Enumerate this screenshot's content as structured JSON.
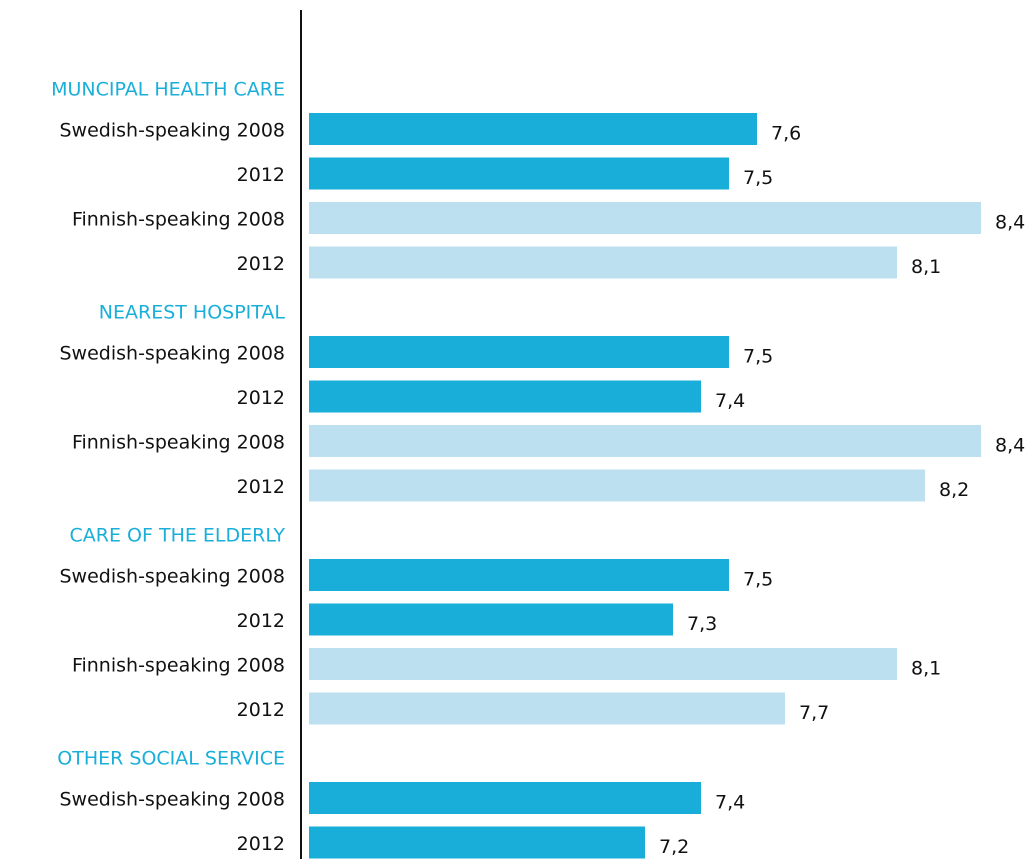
{
  "chart_data": {
    "type": "bar",
    "orientation": "horizontal",
    "xlim": [
      6,
      8.5
    ],
    "colors": [
      "#19aed9",
      "#19aed9",
      "#bde0f1",
      "#bde0f1"
    ],
    "groups": [
      {
        "name": "MUNCIPAL HEALTH CARE",
        "categories": [
          "Swedish-speaking 2008",
          "2012",
          "Finnish-speaking 2008",
          "2012"
        ],
        "values": [
          7.6,
          7.5,
          8.4,
          8.1
        ],
        "value_labels": [
          "7,6",
          "7,5",
          "8,4",
          "8,1"
        ]
      },
      {
        "name": "NEAREST HOSPITAL",
        "categories": [
          "Swedish-speaking 2008",
          "2012",
          "Finnish-speaking 2008",
          "2012"
        ],
        "values": [
          7.5,
          7.4,
          8.4,
          8.2
        ],
        "value_labels": [
          "7,5",
          "7,4",
          "8,4",
          "8,2"
        ]
      },
      {
        "name": "CARE OF THE ELDERLY",
        "categories": [
          "Swedish-speaking 2008",
          "2012",
          "Finnish-speaking 2008",
          "2012"
        ],
        "values": [
          7.5,
          7.3,
          8.1,
          7.7
        ],
        "value_labels": [
          "7,5",
          "7,3",
          "8,1",
          "7,7"
        ]
      },
      {
        "name": "OTHER SOCIAL SERVICE",
        "categories": [
          "Swedish-speaking 2008",
          "2012"
        ],
        "values": [
          7.4,
          7.2
        ],
        "value_labels": [
          "7,4",
          "7,2"
        ]
      }
    ]
  }
}
